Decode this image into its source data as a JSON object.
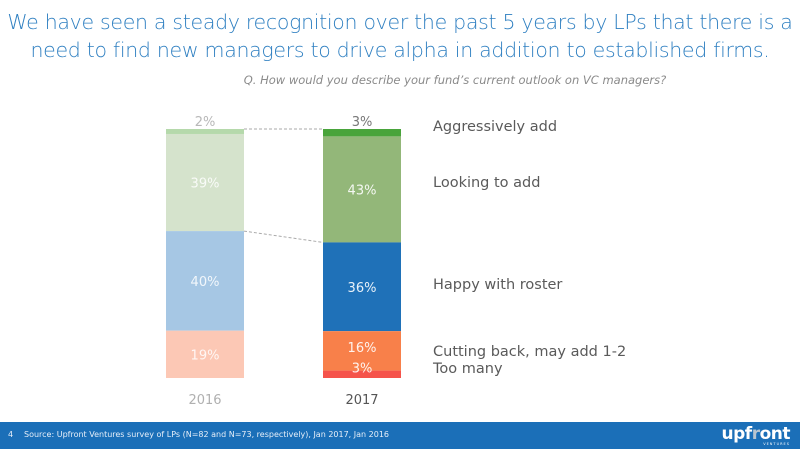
{
  "title_line1": "We have seen a steady recognition over the past 5 years by LPs that there is a",
  "title_line2": "need to find new managers to drive alpha in addition to established firms.",
  "question": "Q. How would you describe your fund’s current outlook on VC managers?",
  "chart_data": {
    "type": "bar",
    "stacked": true,
    "categories": [
      "2016",
      "2017"
    ],
    "series": [
      {
        "name": "Aggressively add",
        "values": [
          2,
          3
        ],
        "labels": [
          "2%",
          "3%"
        ],
        "colors": [
          "#b5d9ab",
          "#49a43b"
        ]
      },
      {
        "name": "Looking to add",
        "values": [
          39,
          43
        ],
        "labels": [
          "39%",
          "43%"
        ],
        "colors": [
          "#d5e3cc",
          "#93b779"
        ]
      },
      {
        "name": "Happy with roster",
        "values": [
          40,
          36
        ],
        "labels": [
          "40%",
          "36%"
        ],
        "colors": [
          "#a6c7e4",
          "#1f71b8"
        ]
      },
      {
        "name": "Cutting back, may add 1-2",
        "values": [
          19,
          16
        ],
        "labels": [
          "19%",
          "16%"
        ],
        "colors": [
          "#fcc8b5",
          "#f8804a"
        ]
      },
      {
        "name": "Too many",
        "values": [
          0,
          3
        ],
        "labels": [
          "",
          "3%"
        ],
        "colors": [
          "#fcc8b5",
          "#f5534b"
        ]
      }
    ],
    "ylim": [
      0,
      100
    ]
  },
  "legend": [
    "Aggressively add",
    "Looking to add",
    "Happy with roster",
    "Cutting back, may add 1-2",
    "Too many"
  ],
  "footer": {
    "page": "4",
    "source": "Source: Upfront Ventures survey of LPs (N=82 and N=73, respectively), Jan 2017, Jan 2016"
  },
  "logo": {
    "part1": "upf",
    "part2": "r",
    "part3": "ont",
    "sub": "VENTURES"
  }
}
